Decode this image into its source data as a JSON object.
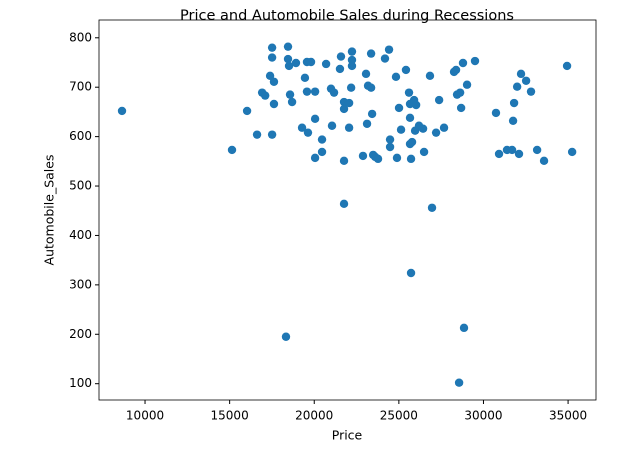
{
  "chart_data": {
    "type": "scatter",
    "title": "Price and Automobile Sales during Recessions",
    "x_label": "Price",
    "y_label": "Automobile_Sales",
    "color": "#1f77b4",
    "xlim": [
      7280,
      36650
    ],
    "ylim": [
      67,
      836
    ],
    "xticks": [
      10000,
      15000,
      20000,
      25000,
      30000,
      35000
    ],
    "yticks": [
      100,
      200,
      300,
      400,
      500,
      600,
      700,
      800
    ],
    "x": [
      8640,
      15140,
      16030,
      16620,
      16920,
      17100,
      17390,
      17510,
      17510,
      17620,
      17620,
      17510,
      18330,
      18450,
      18450,
      18510,
      18570,
      18690,
      18920,
      19280,
      19450,
      19570,
      19570,
      19630,
      19810,
      20050,
      20050,
      20050,
      20460,
      20460,
      20700,
      20990,
      21050,
      21170,
      21520,
      21580,
      21760,
      21760,
      21760,
      21760,
      22060,
      22180,
      22060,
      22230,
      22230,
      22230,
      22880,
      23060,
      23120,
      23180,
      23360,
      23360,
      23420,
      23480,
      23600,
      23770,
      24180,
      24420,
      24480,
      24480,
      24830,
      24890,
      25010,
      25130,
      25420,
      25600,
      25660,
      25660,
      25660,
      25720,
      25720,
      25780,
      25900,
      25960,
      26020,
      26190,
      26430,
      26490,
      26840,
      26960,
      27200,
      27380,
      27670,
      28260,
      28380,
      28440,
      28620,
      28560,
      28680,
      28790,
      28850,
      29030,
      29500,
      30740,
      30920,
      31390,
      31690,
      31750,
      31810,
      31990,
      32100,
      32220,
      32520,
      32810,
      33170,
      33580,
      34940,
      35240
    ],
    "values": [
      652,
      573,
      652,
      604,
      689,
      683,
      723,
      780,
      760,
      711,
      666,
      604,
      195,
      782,
      757,
      743,
      685,
      670,
      749,
      618,
      719,
      751,
      691,
      608,
      751,
      691,
      636,
      557,
      569,
      594,
      747,
      697,
      622,
      689,
      737,
      762,
      670,
      656,
      551,
      464,
      668,
      699,
      618,
      772,
      755,
      743,
      561,
      727,
      626,
      703,
      768,
      699,
      646,
      563,
      559,
      555,
      758,
      776,
      579,
      594,
      721,
      557,
      658,
      614,
      735,
      689,
      666,
      638,
      585,
      555,
      324,
      589,
      674,
      612,
      664,
      622,
      616,
      569,
      723,
      456,
      608,
      674,
      618,
      731,
      735,
      685,
      689,
      102,
      658,
      749,
      213,
      705,
      753,
      648,
      565,
      573,
      573,
      632,
      668,
      701,
      565,
      727,
      713,
      691,
      573,
      551,
      743,
      569
    ]
  }
}
